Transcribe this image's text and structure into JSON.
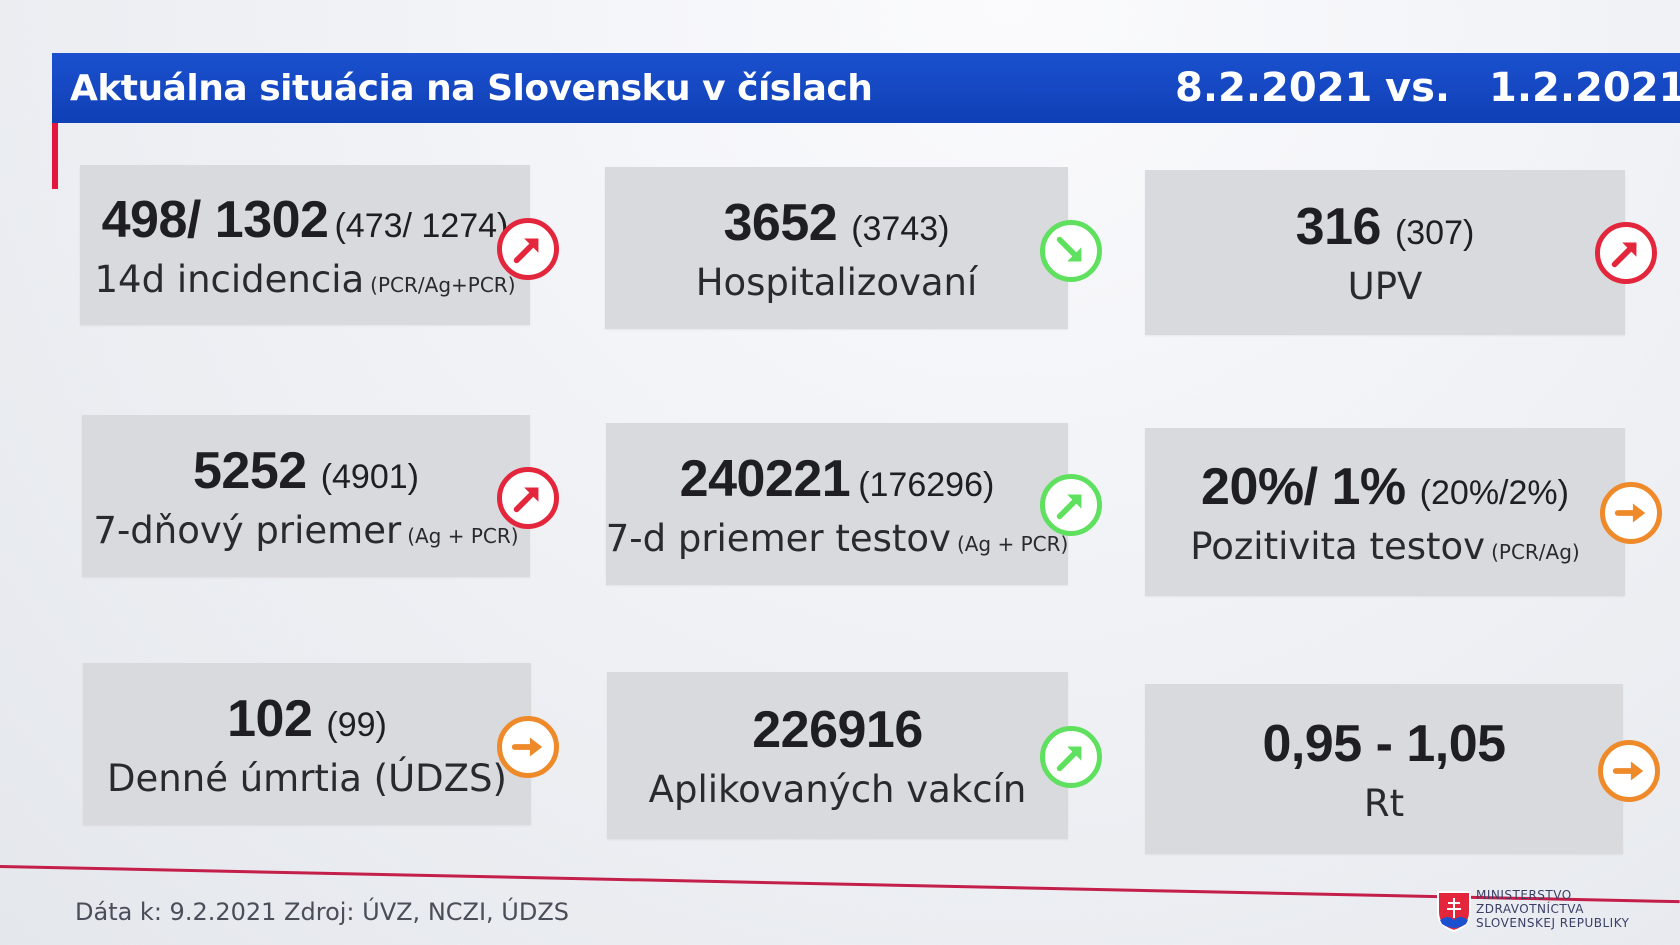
{
  "header": {
    "title": "Aktuálna situácia na Slovensku v číslach",
    "date_current": "8.2.2021",
    "vs": "vs.",
    "date_previous": "1.2.2021"
  },
  "colors": {
    "header_blue": "#1448c8",
    "accent_red": "#e3173d",
    "trend_up_bad": "#e3263c",
    "trend_good": "#5fe15f",
    "trend_flat": "#ef8a2a"
  },
  "cards": [
    {
      "value": "498/ 1302",
      "previous": "(473/ 1274)",
      "label": "14d incidencia",
      "note": "(PCR/Ag+PCR)",
      "trend_icon": "arrow-up-right-icon",
      "trend_color": "red"
    },
    {
      "value": "3652",
      "previous": "(3743)",
      "label": "Hospitalizovaní",
      "note": "",
      "trend_icon": "arrow-down-right-icon",
      "trend_color": "green"
    },
    {
      "value": "316",
      "previous": "(307)",
      "label": "UPV",
      "note": "",
      "trend_icon": "arrow-up-right-icon",
      "trend_color": "red"
    },
    {
      "value": "5252",
      "previous": "(4901)",
      "label": "7-dňový priemer",
      "note": "(Ag + PCR)",
      "trend_icon": "arrow-up-right-icon",
      "trend_color": "red"
    },
    {
      "value": "240221",
      "previous": "(176296)",
      "label": "7-d priemer testov",
      "note": "(Ag + PCR)",
      "trend_icon": "arrow-up-right-icon",
      "trend_color": "green"
    },
    {
      "value": "20%/ 1%",
      "previous": "(20%/2%)",
      "label": "Pozitivita testov",
      "note": "(PCR/Ag)",
      "trend_icon": "arrow-right-icon",
      "trend_color": "orange"
    },
    {
      "value": "102",
      "previous": "(99)",
      "label": "Denné úmrtia (ÚDZS)",
      "note": "",
      "trend_icon": "arrow-right-icon",
      "trend_color": "orange"
    },
    {
      "value": "226916",
      "previous": "",
      "label": "Aplikovaných vakcín",
      "note": "",
      "trend_icon": "arrow-up-right-icon",
      "trend_color": "green"
    },
    {
      "value": "0,95 - 1,05",
      "previous": "",
      "label": "Rt",
      "note": "",
      "trend_icon": "arrow-right-icon",
      "trend_color": "orange"
    }
  ],
  "footer": {
    "source": "Dáta k: 9.2.2021 Zdroj: ÚVZ, NCZI, ÚDZS",
    "ministry": [
      "MINISTERSTVO",
      "ZDRAVOTNÍCTVA",
      "SLOVENSKEJ REPUBLIKY"
    ],
    "logo_icon": "slovak-coat-of-arms-icon"
  }
}
